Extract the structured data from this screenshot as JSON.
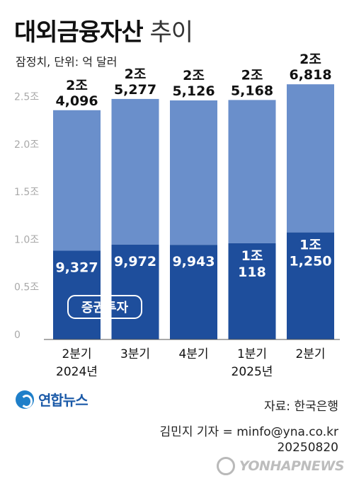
{
  "header": {
    "title_main": "대외금융자산",
    "title_sub": " 추이",
    "unit_note": "잠정치, 단위: 억 달러"
  },
  "chart_data": {
    "type": "bar",
    "stacked": true,
    "categories": [
      "2분기",
      "3분기",
      "4분기",
      "1분기",
      "2분기"
    ],
    "category_years": [
      "2024년",
      "",
      "",
      "2025년",
      ""
    ],
    "totals": [
      24096,
      25277,
      25126,
      25168,
      26818
    ],
    "total_labels": [
      [
        "2조",
        "4,096"
      ],
      [
        "2조",
        "5,277"
      ],
      [
        "2조",
        "5,126"
      ],
      [
        "2조",
        "5,168"
      ],
      [
        "2조",
        "6,818"
      ]
    ],
    "series": [
      {
        "name": "증권투자",
        "values": [
          9327,
          9972,
          9943,
          10118,
          11250
        ],
        "labels": [
          [
            "9,327"
          ],
          [
            "9,972"
          ],
          [
            "9,943"
          ],
          [
            "1조",
            "118"
          ],
          [
            "1조",
            "1,250"
          ]
        ],
        "color": "#1e4e9c"
      },
      {
        "values": [
          14769,
          15305,
          15183,
          15050,
          15568
        ],
        "color": "#6a8fcb"
      }
    ],
    "ylim": [
      0,
      27500
    ],
    "yticks": [
      0,
      5000,
      10000,
      15000,
      20000,
      25000
    ],
    "ytick_labels": [
      "0",
      "0.5조",
      "1.0조",
      "1.5조",
      "2.0조",
      "2.5조"
    ],
    "grid": false,
    "legend_label": "증권투자"
  },
  "footer": {
    "logo_text": "연합뉴스",
    "source": "자료: 한국은행",
    "credit_line1": "김민지 기자 = minfo@yna.co.kr",
    "credit_line2": "20250820",
    "watermark": "YONHAPNEWS"
  }
}
